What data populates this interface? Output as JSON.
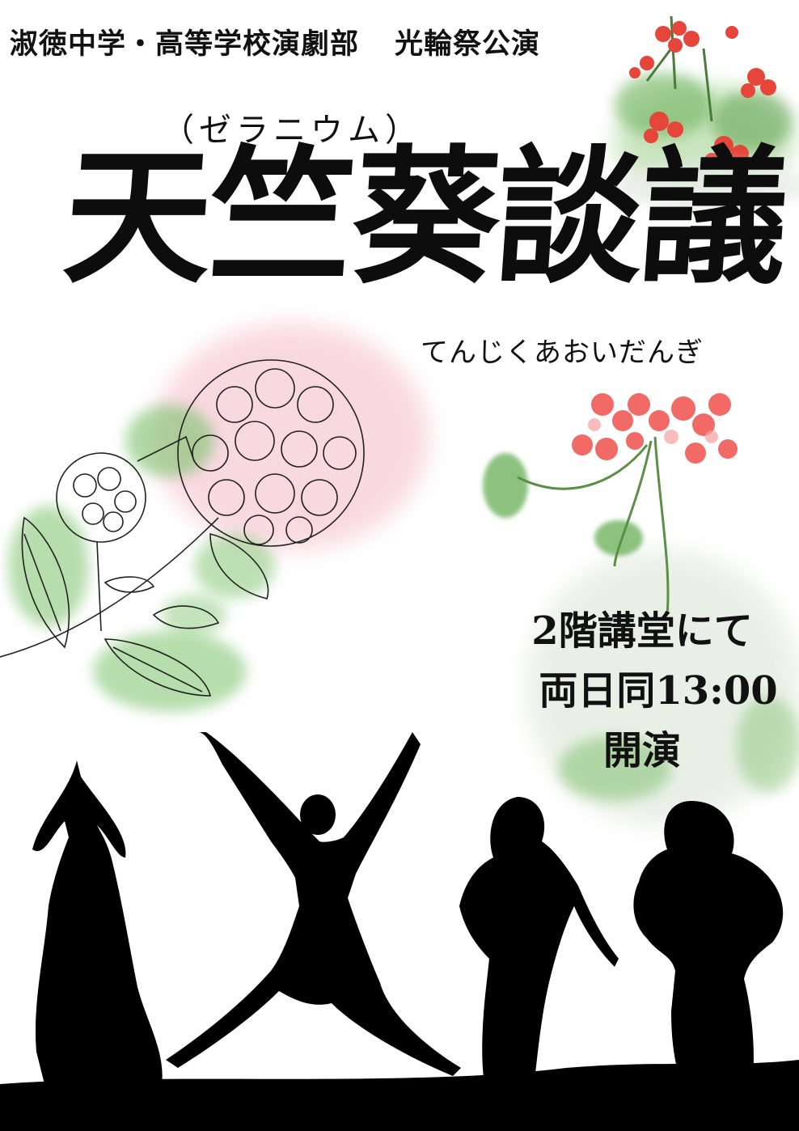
{
  "header": {
    "school": "淑徳中学・高等学校演劇部",
    "event": "光輪祭公演"
  },
  "title": {
    "ruby": "（ゼラニウム）",
    "main": "天竺葵談議",
    "reading": "てんじくあおいだんぎ"
  },
  "info": {
    "venue": "2階講堂にて",
    "time": "両日同13:00",
    "start": "開演"
  },
  "colors": {
    "geranium_red": "#e6453a",
    "hydrangea_pink": "#f4b9c9",
    "leaf_green": "#7cc26b",
    "silhouette": "#000000"
  },
  "illustrations": [
    "geranium-top-right-illustration",
    "hydrangea-illustration",
    "geranium-pink-illustration",
    "dancer-silhouettes"
  ]
}
